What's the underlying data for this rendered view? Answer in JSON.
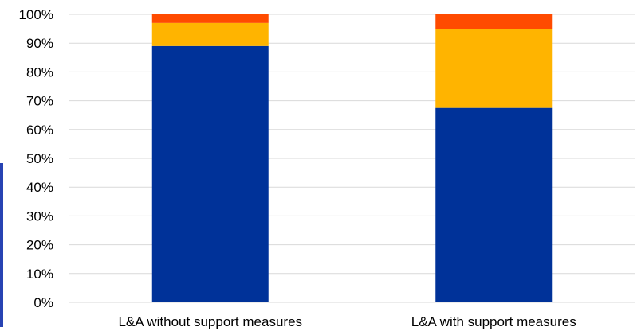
{
  "chart_data": {
    "type": "bar",
    "stacked": true,
    "categories": [
      "L&A without support measures",
      "L&A with support measures"
    ],
    "series": [
      {
        "color": "#003299",
        "values": [
          89,
          67.5
        ]
      },
      {
        "color": "#ffb400",
        "values": [
          8,
          27.5
        ]
      },
      {
        "color": "#ff4b00",
        "values": [
          3,
          5
        ]
      }
    ],
    "yticks": [
      "0%",
      "10%",
      "20%",
      "30%",
      "40%",
      "50%",
      "60%",
      "70%",
      "80%",
      "90%",
      "100%"
    ],
    "ylim": [
      0,
      100
    ],
    "grid": true,
    "legend": "none",
    "edge_accent_color": "#2743b3"
  }
}
